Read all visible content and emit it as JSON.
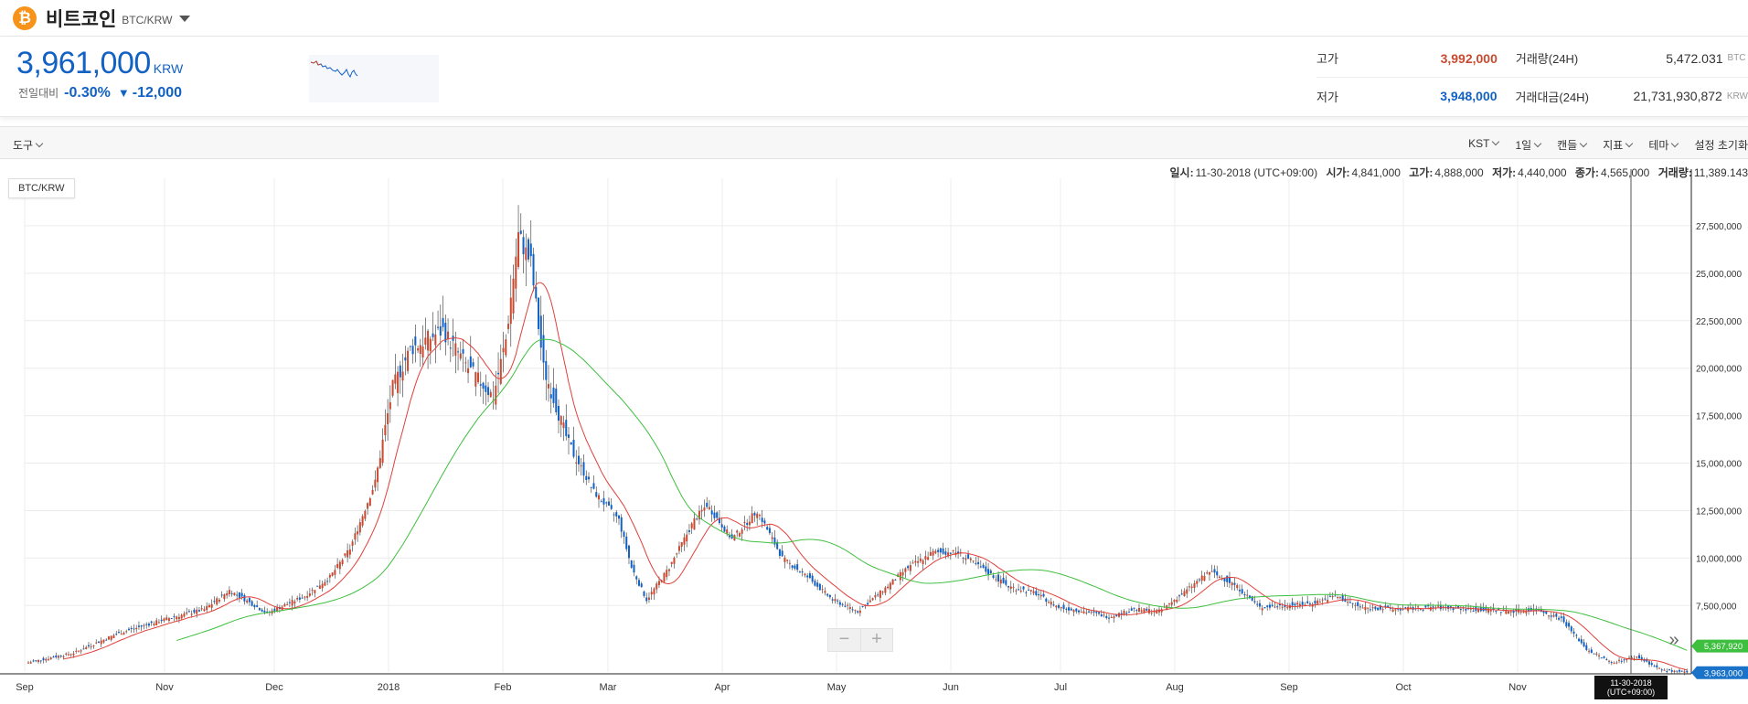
{
  "header": {
    "coin_icon_glyph": "₿",
    "coin_name": "비트코인",
    "pair": "BTC/KRW",
    "icon_color": "#f7931a"
  },
  "price": {
    "current": "3,961,000",
    "unit": "KRW",
    "change_label": "전일대비",
    "change_pct": "-0.30%",
    "change_arrow": "▼",
    "change_amount": "-12,000"
  },
  "stats": {
    "high_label": "고가",
    "high": "3,992,000",
    "low_label": "저가",
    "low": "3,948,000",
    "volume_label": "거래량(24H)",
    "volume": "5,472.031",
    "volume_unit": "BTC",
    "value_label": "거래대금(24H)",
    "value": "21,731,930,872",
    "value_unit": "KRW"
  },
  "toolbar": {
    "tools": "도구",
    "timezone": "KST",
    "interval": "1일",
    "chart_type": "캔들",
    "indicators": "지표",
    "theme": "테마",
    "reset": "설정 초기화"
  },
  "ohlc": {
    "date_label": "일시:",
    "date": "11-30-2018 (UTC+09:00)",
    "open_label": "시가:",
    "open": "4,841,000",
    "high_label": "고가:",
    "high": "4,888,000",
    "low_label": "저가:",
    "low": "4,440,000",
    "close_label": "종가:",
    "close": "4,565,000",
    "volume_label": "거래량:",
    "volume": "11,389.143"
  },
  "chart_data": {
    "type": "candlestick",
    "symbol": "BTC/KRW",
    "x_ticks": [
      "Sep",
      "Nov",
      "Dec",
      "2018",
      "Feb",
      "Mar",
      "Apr",
      "May",
      "Jun",
      "Jul",
      "Aug",
      "Sep",
      "Oct",
      "Nov"
    ],
    "y_ticks": [
      "27,500,000",
      "25,000,000",
      "22,500,000",
      "20,000,000",
      "17,500,000",
      "15,000,000",
      "12,500,000",
      "10,000,000",
      "7,500,000"
    ],
    "ylim": [
      4000000,
      30000000
    ],
    "grid": true,
    "crosshair_label": [
      "11-30-2018",
      "(UTC+09:00)"
    ],
    "last_price_label": "3,963,000",
    "ma_long_label": "5,367,920",
    "up_color": "#c84a31",
    "down_color": "#1261c4",
    "ma_short_color": "#e0403a",
    "ma_long_color": "#3fbf3f",
    "approx_close_keypoints": [
      [
        0,
        4500000
      ],
      [
        18,
        5000000
      ],
      [
        35,
        6000000
      ],
      [
        55,
        6800000
      ],
      [
        70,
        7300000
      ],
      [
        80,
        8300000
      ],
      [
        95,
        7100000
      ],
      [
        110,
        8000000
      ],
      [
        120,
        9000000
      ],
      [
        128,
        10500000
      ],
      [
        138,
        14000000
      ],
      [
        145,
        19000000
      ],
      [
        152,
        21000000
      ],
      [
        165,
        22000000
      ],
      [
        175,
        20000000
      ],
      [
        185,
        18500000
      ],
      [
        190,
        21500000
      ],
      [
        195,
        27000000
      ],
      [
        200,
        25500000
      ],
      [
        205,
        20000000
      ],
      [
        215,
        16000000
      ],
      [
        225,
        13500000
      ],
      [
        235,
        12000000
      ],
      [
        240,
        9500000
      ],
      [
        246,
        7800000
      ],
      [
        255,
        9500000
      ],
      [
        265,
        12000000
      ],
      [
        270,
        12800000
      ],
      [
        280,
        11000000
      ],
      [
        290,
        12500000
      ],
      [
        300,
        10000000
      ],
      [
        310,
        9000000
      ],
      [
        320,
        7800000
      ],
      [
        330,
        7200000
      ],
      [
        340,
        8300000
      ],
      [
        350,
        9500000
      ],
      [
        360,
        10300000
      ],
      [
        370,
        10300000
      ],
      [
        380,
        9400000
      ],
      [
        390,
        8500000
      ],
      [
        400,
        8200000
      ],
      [
        410,
        7400000
      ],
      [
        420,
        7200000
      ],
      [
        430,
        6900000
      ],
      [
        440,
        7300000
      ],
      [
        450,
        7200000
      ],
      [
        460,
        8200000
      ],
      [
        470,
        9300000
      ],
      [
        480,
        8600000
      ],
      [
        490,
        7400000
      ],
      [
        500,
        7500000
      ],
      [
        510,
        7600000
      ],
      [
        520,
        8000000
      ],
      [
        530,
        7400000
      ],
      [
        545,
        7300000
      ],
      [
        560,
        7400000
      ],
      [
        575,
        7300000
      ],
      [
        590,
        7200000
      ],
      [
        600,
        7300000
      ],
      [
        610,
        6800000
      ],
      [
        620,
        5200000
      ],
      [
        630,
        4500000
      ],
      [
        640,
        4800000
      ],
      [
        650,
        4100000
      ],
      [
        660,
        3963000
      ]
    ]
  }
}
